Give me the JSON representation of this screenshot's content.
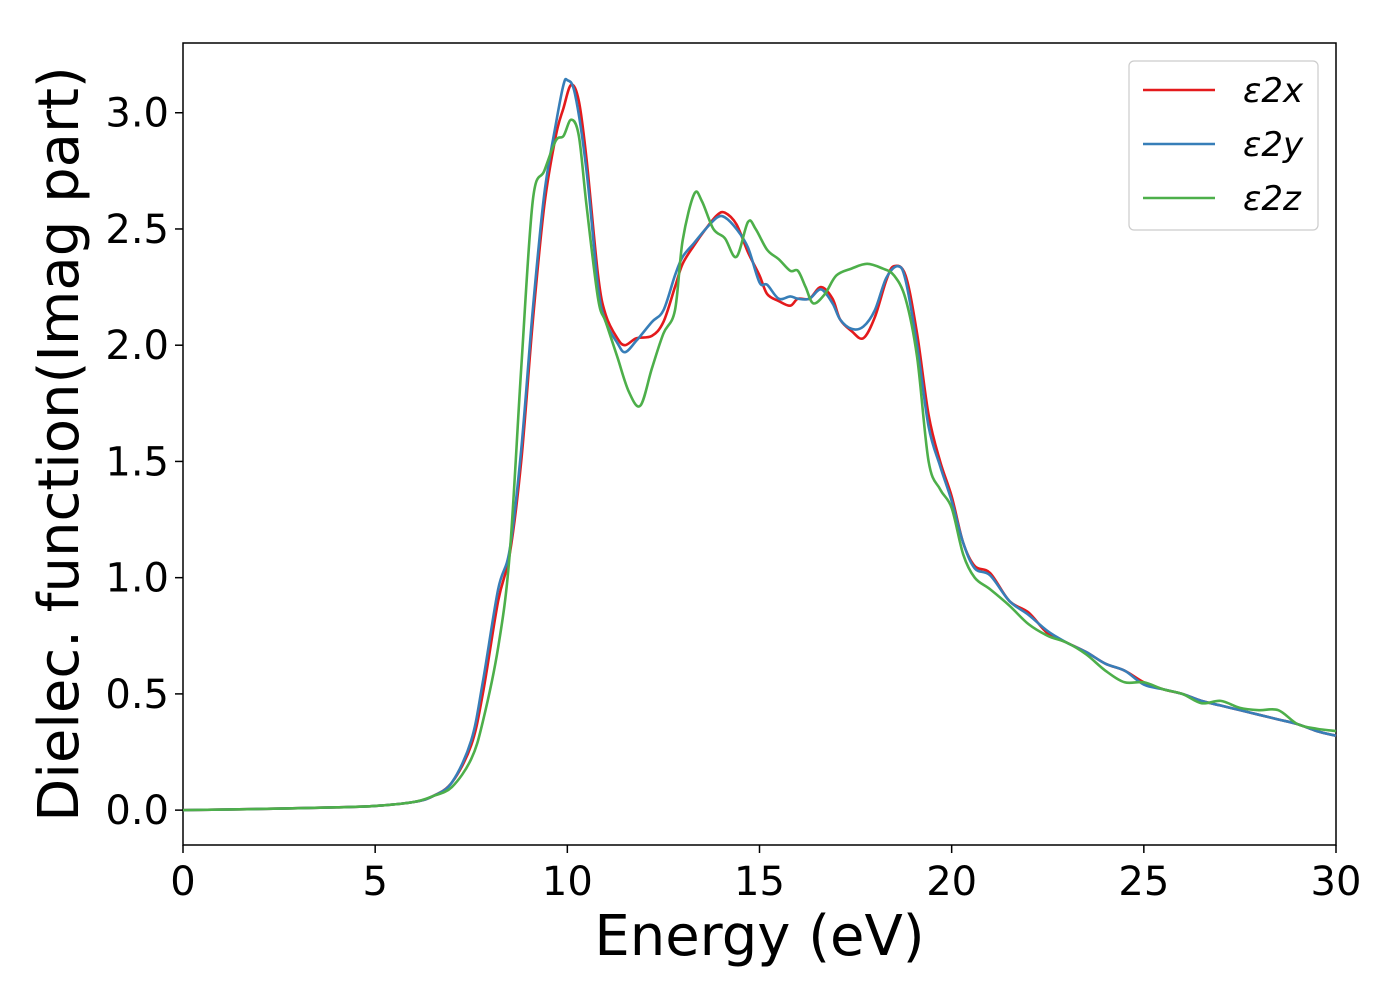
{
  "chart_data": {
    "type": "line",
    "xlabel": "Energy (eV)",
    "ylabel": "Dielec. function(Imag part)",
    "xlim": [
      0,
      30
    ],
    "ylim": [
      -0.15,
      3.3
    ],
    "xticks": [
      0,
      5,
      10,
      15,
      20,
      25,
      30
    ],
    "yticks": [
      0.0,
      0.5,
      1.0,
      1.5,
      2.0,
      2.5,
      3.0
    ],
    "xtick_labels": [
      "0",
      "5",
      "10",
      "15",
      "20",
      "25",
      "30"
    ],
    "ytick_labels": [
      "0.0",
      "0.5",
      "1.0",
      "1.5",
      "2.0",
      "2.5",
      "3.0"
    ],
    "grid": false,
    "legend": "top-right",
    "series": [
      {
        "name": "ε2x",
        "color": "#e41a1c",
        "points": [
          [
            0,
            0.0
          ],
          [
            2,
            0.005
          ],
          [
            4,
            0.012
          ],
          [
            5,
            0.018
          ],
          [
            6,
            0.035
          ],
          [
            6.5,
            0.06
          ],
          [
            7,
            0.12
          ],
          [
            7.5,
            0.28
          ],
          [
            7.8,
            0.5
          ],
          [
            8.2,
            0.9
          ],
          [
            8.5,
            1.1
          ],
          [
            8.8,
            1.5
          ],
          [
            9.1,
            2.1
          ],
          [
            9.4,
            2.6
          ],
          [
            9.7,
            2.9
          ],
          [
            9.9,
            3.02
          ],
          [
            10.1,
            3.12
          ],
          [
            10.3,
            3.05
          ],
          [
            10.5,
            2.8
          ],
          [
            10.8,
            2.3
          ],
          [
            11.0,
            2.13
          ],
          [
            11.3,
            2.03
          ],
          [
            11.5,
            2.0
          ],
          [
            11.8,
            2.03
          ],
          [
            12.2,
            2.04
          ],
          [
            12.5,
            2.1
          ],
          [
            12.8,
            2.25
          ],
          [
            13.0,
            2.35
          ],
          [
            13.3,
            2.43
          ],
          [
            13.6,
            2.5
          ],
          [
            13.9,
            2.56
          ],
          [
            14.1,
            2.57
          ],
          [
            14.4,
            2.52
          ],
          [
            14.7,
            2.4
          ],
          [
            15.0,
            2.3
          ],
          [
            15.2,
            2.22
          ],
          [
            15.5,
            2.19
          ],
          [
            15.8,
            2.17
          ],
          [
            16.0,
            2.2
          ],
          [
            16.3,
            2.2
          ],
          [
            16.6,
            2.25
          ],
          [
            16.9,
            2.2
          ],
          [
            17.1,
            2.11
          ],
          [
            17.4,
            2.06
          ],
          [
            17.7,
            2.03
          ],
          [
            18.0,
            2.12
          ],
          [
            18.3,
            2.28
          ],
          [
            18.5,
            2.34
          ],
          [
            18.8,
            2.3
          ],
          [
            19.1,
            2.05
          ],
          [
            19.4,
            1.7
          ],
          [
            19.7,
            1.5
          ],
          [
            20.0,
            1.35
          ],
          [
            20.3,
            1.15
          ],
          [
            20.6,
            1.05
          ],
          [
            21.0,
            1.02
          ],
          [
            21.5,
            0.9
          ],
          [
            22.0,
            0.85
          ],
          [
            22.5,
            0.76
          ],
          [
            23.0,
            0.72
          ],
          [
            23.5,
            0.68
          ],
          [
            24.0,
            0.63
          ],
          [
            24.5,
            0.6
          ],
          [
            25.0,
            0.55
          ],
          [
            25.5,
            0.52
          ],
          [
            26.0,
            0.5
          ],
          [
            26.5,
            0.47
          ],
          [
            27.0,
            0.45
          ],
          [
            27.5,
            0.43
          ],
          [
            28.0,
            0.41
          ],
          [
            28.5,
            0.39
          ],
          [
            29.0,
            0.37
          ],
          [
            29.5,
            0.34
          ],
          [
            30.0,
            0.32
          ]
        ]
      },
      {
        "name": "ε2y",
        "color": "#377eb8",
        "points": [
          [
            0,
            0.0
          ],
          [
            2,
            0.005
          ],
          [
            4,
            0.012
          ],
          [
            5,
            0.018
          ],
          [
            6,
            0.035
          ],
          [
            6.5,
            0.06
          ],
          [
            7,
            0.12
          ],
          [
            7.5,
            0.3
          ],
          [
            7.8,
            0.55
          ],
          [
            8.2,
            0.95
          ],
          [
            8.5,
            1.12
          ],
          [
            8.8,
            1.55
          ],
          [
            9.1,
            2.15
          ],
          [
            9.4,
            2.65
          ],
          [
            9.7,
            2.95
          ],
          [
            9.9,
            3.12
          ],
          [
            10.0,
            3.14
          ],
          [
            10.2,
            3.08
          ],
          [
            10.5,
            2.75
          ],
          [
            10.8,
            2.25
          ],
          [
            11.0,
            2.1
          ],
          [
            11.3,
            2.01
          ],
          [
            11.5,
            1.97
          ],
          [
            11.8,
            2.02
          ],
          [
            12.2,
            2.1
          ],
          [
            12.5,
            2.15
          ],
          [
            12.8,
            2.3
          ],
          [
            13.0,
            2.38
          ],
          [
            13.3,
            2.44
          ],
          [
            13.6,
            2.5
          ],
          [
            13.9,
            2.55
          ],
          [
            14.1,
            2.55
          ],
          [
            14.4,
            2.5
          ],
          [
            14.7,
            2.42
          ],
          [
            15.0,
            2.27
          ],
          [
            15.2,
            2.26
          ],
          [
            15.5,
            2.2
          ],
          [
            15.8,
            2.21
          ],
          [
            16.0,
            2.2
          ],
          [
            16.3,
            2.2
          ],
          [
            16.6,
            2.24
          ],
          [
            16.9,
            2.18
          ],
          [
            17.1,
            2.11
          ],
          [
            17.4,
            2.07
          ],
          [
            17.7,
            2.08
          ],
          [
            18.0,
            2.15
          ],
          [
            18.3,
            2.29
          ],
          [
            18.6,
            2.34
          ],
          [
            18.8,
            2.28
          ],
          [
            19.1,
            2.0
          ],
          [
            19.4,
            1.65
          ],
          [
            19.7,
            1.48
          ],
          [
            20.0,
            1.33
          ],
          [
            20.3,
            1.15
          ],
          [
            20.6,
            1.04
          ],
          [
            21.0,
            1.01
          ],
          [
            21.5,
            0.9
          ],
          [
            22.0,
            0.84
          ],
          [
            22.5,
            0.77
          ],
          [
            23.0,
            0.72
          ],
          [
            23.5,
            0.68
          ],
          [
            24.0,
            0.63
          ],
          [
            24.5,
            0.6
          ],
          [
            25.0,
            0.54
          ],
          [
            25.5,
            0.52
          ],
          [
            26.0,
            0.5
          ],
          [
            26.5,
            0.47
          ],
          [
            27.0,
            0.45
          ],
          [
            27.5,
            0.43
          ],
          [
            28.0,
            0.41
          ],
          [
            28.5,
            0.39
          ],
          [
            29.0,
            0.37
          ],
          [
            29.5,
            0.34
          ],
          [
            30.0,
            0.32
          ]
        ]
      },
      {
        "name": "ε2z",
        "color": "#4daf4a",
        "points": [
          [
            0,
            0.0
          ],
          [
            2,
            0.005
          ],
          [
            4,
            0.012
          ],
          [
            5,
            0.018
          ],
          [
            6,
            0.035
          ],
          [
            6.5,
            0.06
          ],
          [
            7,
            0.1
          ],
          [
            7.5,
            0.22
          ],
          [
            7.8,
            0.38
          ],
          [
            8.2,
            0.7
          ],
          [
            8.5,
            1.1
          ],
          [
            8.8,
            1.9
          ],
          [
            9.1,
            2.62
          ],
          [
            9.4,
            2.75
          ],
          [
            9.7,
            2.88
          ],
          [
            9.9,
            2.9
          ],
          [
            10.1,
            2.97
          ],
          [
            10.3,
            2.9
          ],
          [
            10.5,
            2.6
          ],
          [
            10.8,
            2.2
          ],
          [
            11.0,
            2.1
          ],
          [
            11.3,
            1.95
          ],
          [
            11.6,
            1.8
          ],
          [
            11.9,
            1.74
          ],
          [
            12.2,
            1.9
          ],
          [
            12.5,
            2.05
          ],
          [
            12.8,
            2.15
          ],
          [
            13.0,
            2.45
          ],
          [
            13.3,
            2.65
          ],
          [
            13.5,
            2.62
          ],
          [
            13.8,
            2.5
          ],
          [
            14.1,
            2.46
          ],
          [
            14.4,
            2.38
          ],
          [
            14.7,
            2.53
          ],
          [
            14.9,
            2.5
          ],
          [
            15.2,
            2.41
          ],
          [
            15.5,
            2.37
          ],
          [
            15.8,
            2.32
          ],
          [
            16.0,
            2.32
          ],
          [
            16.2,
            2.25
          ],
          [
            16.4,
            2.18
          ],
          [
            16.7,
            2.22
          ],
          [
            17.0,
            2.3
          ],
          [
            17.4,
            2.33
          ],
          [
            17.8,
            2.35
          ],
          [
            18.2,
            2.33
          ],
          [
            18.5,
            2.3
          ],
          [
            18.8,
            2.2
          ],
          [
            19.1,
            1.95
          ],
          [
            19.4,
            1.5
          ],
          [
            19.7,
            1.38
          ],
          [
            20.0,
            1.3
          ],
          [
            20.3,
            1.1
          ],
          [
            20.6,
            1.0
          ],
          [
            21.0,
            0.95
          ],
          [
            21.5,
            0.88
          ],
          [
            22.0,
            0.8
          ],
          [
            22.5,
            0.75
          ],
          [
            23.0,
            0.72
          ],
          [
            23.5,
            0.67
          ],
          [
            24.0,
            0.6
          ],
          [
            24.5,
            0.55
          ],
          [
            25.0,
            0.55
          ],
          [
            25.5,
            0.52
          ],
          [
            26.0,
            0.5
          ],
          [
            26.5,
            0.46
          ],
          [
            27.0,
            0.47
          ],
          [
            27.5,
            0.44
          ],
          [
            28.0,
            0.43
          ],
          [
            28.5,
            0.43
          ],
          [
            29.0,
            0.37
          ],
          [
            29.5,
            0.35
          ],
          [
            30.0,
            0.34
          ]
        ]
      }
    ]
  }
}
